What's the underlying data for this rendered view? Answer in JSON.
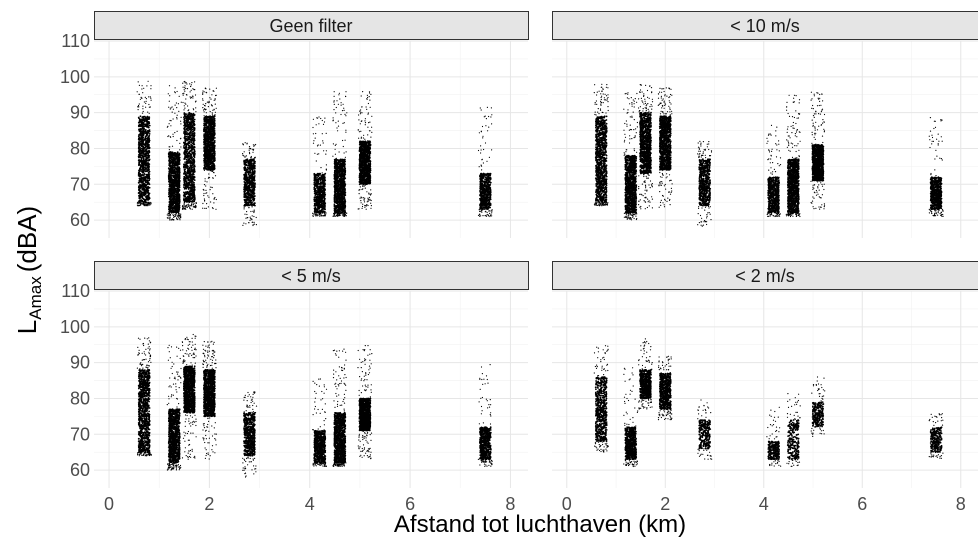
{
  "chart_data": {
    "type": "scatter",
    "xlabel": "Afstand tot luchthaven (km)",
    "ylabel": {
      "main": "L",
      "subscript": "Amax",
      "unit": "(dBA)"
    },
    "xlim": [
      0,
      8
    ],
    "ylim": [
      55,
      110
    ],
    "x_ticks": [
      "0",
      "2",
      "4",
      "6",
      "8"
    ],
    "y_ticks": [
      "60",
      "70",
      "80",
      "90",
      "100",
      "110"
    ],
    "grid": true,
    "point_color": "#000000",
    "panels": [
      {
        "title": "Geen filter",
        "groups": [
          {
            "x": 0.7,
            "core": [
              65,
              89
            ],
            "range": [
              64,
              99
            ],
            "density": "high"
          },
          {
            "x": 1.3,
            "core": [
              62,
              79
            ],
            "range": [
              60,
              98
            ],
            "density": "high"
          },
          {
            "x": 1.6,
            "core": [
              65,
              90
            ],
            "range": [
              63,
              99
            ],
            "density": "high"
          },
          {
            "x": 2.0,
            "core": [
              74,
              89
            ],
            "range": [
              63,
              97
            ],
            "density": "high"
          },
          {
            "x": 2.8,
            "core": [
              64,
              77
            ],
            "range": [
              58,
              82
            ],
            "density": "medium"
          },
          {
            "x": 4.2,
            "core": [
              62,
              73
            ],
            "range": [
              61,
              89
            ],
            "density": "medium"
          },
          {
            "x": 4.6,
            "core": [
              62,
              77
            ],
            "range": [
              61,
              96
            ],
            "density": "high"
          },
          {
            "x": 5.1,
            "core": [
              70,
              82
            ],
            "range": [
              63,
              96
            ],
            "density": "high"
          },
          {
            "x": 7.5,
            "core": [
              63,
              73
            ],
            "range": [
              61,
              92
            ],
            "density": "medium"
          }
        ]
      },
      {
        "title": "< 10 m/s",
        "groups": [
          {
            "x": 0.7,
            "core": [
              65,
              89
            ],
            "range": [
              64,
              98
            ],
            "density": "high"
          },
          {
            "x": 1.3,
            "core": [
              62,
              78
            ],
            "range": [
              60,
              96
            ],
            "density": "high"
          },
          {
            "x": 1.6,
            "core": [
              73,
              90
            ],
            "range": [
              63,
              98
            ],
            "density": "high"
          },
          {
            "x": 2.0,
            "core": [
              74,
              89
            ],
            "range": [
              63,
              97
            ],
            "density": "high"
          },
          {
            "x": 2.8,
            "core": [
              64,
              77
            ],
            "range": [
              58,
              82
            ],
            "density": "medium"
          },
          {
            "x": 4.2,
            "core": [
              62,
              72
            ],
            "range": [
              61,
              88
            ],
            "density": "medium"
          },
          {
            "x": 4.6,
            "core": [
              62,
              77
            ],
            "range": [
              61,
              95
            ],
            "density": "high"
          },
          {
            "x": 5.1,
            "core": [
              71,
              81
            ],
            "range": [
              63,
              96
            ],
            "density": "high"
          },
          {
            "x": 7.5,
            "core": [
              63,
              72
            ],
            "range": [
              61,
              90
            ],
            "density": "medium"
          }
        ]
      },
      {
        "title": "< 5 m/s",
        "groups": [
          {
            "x": 0.7,
            "core": [
              65,
              88
            ],
            "range": [
              64,
              97
            ],
            "density": "high"
          },
          {
            "x": 1.3,
            "core": [
              62,
              77
            ],
            "range": [
              60,
              95
            ],
            "density": "high"
          },
          {
            "x": 1.6,
            "core": [
              76,
              89
            ],
            "range": [
              63,
              98
            ],
            "density": "high"
          },
          {
            "x": 2.0,
            "core": [
              75,
              88
            ],
            "range": [
              63,
              96
            ],
            "density": "high"
          },
          {
            "x": 2.8,
            "core": [
              64,
              76
            ],
            "range": [
              58,
              82
            ],
            "density": "medium"
          },
          {
            "x": 4.2,
            "core": [
              62,
              71
            ],
            "range": [
              61,
              86
            ],
            "density": "medium"
          },
          {
            "x": 4.6,
            "core": [
              62,
              76
            ],
            "range": [
              61,
              94
            ],
            "density": "high"
          },
          {
            "x": 5.1,
            "core": [
              71,
              80
            ],
            "range": [
              63,
              95
            ],
            "density": "high"
          },
          {
            "x": 7.5,
            "core": [
              63,
              72
            ],
            "range": [
              61,
              90
            ],
            "density": "medium"
          }
        ]
      },
      {
        "title": "< 2 m/s",
        "groups": [
          {
            "x": 0.7,
            "core": [
              68,
              86
            ],
            "range": [
              65,
              95
            ],
            "density": "medium"
          },
          {
            "x": 1.3,
            "core": [
              63,
              72
            ],
            "range": [
              61,
              90
            ],
            "density": "medium"
          },
          {
            "x": 1.6,
            "core": [
              80,
              88
            ],
            "range": [
              77,
              97
            ],
            "density": "medium"
          },
          {
            "x": 2.0,
            "core": [
              77,
              87
            ],
            "range": [
              74,
              92
            ],
            "density": "medium"
          },
          {
            "x": 2.8,
            "core": [
              66,
              74
            ],
            "range": [
              63,
              80
            ],
            "density": "low"
          },
          {
            "x": 4.2,
            "core": [
              63,
              68
            ],
            "range": [
              61,
              78
            ],
            "density": "low"
          },
          {
            "x": 4.6,
            "core": [
              63,
              74
            ],
            "range": [
              61,
              82
            ],
            "density": "low"
          },
          {
            "x": 5.1,
            "core": [
              72,
              79
            ],
            "range": [
              69,
              86
            ],
            "density": "low"
          },
          {
            "x": 7.5,
            "core": [
              65,
              72
            ],
            "range": [
              63,
              76
            ],
            "density": "low"
          }
        ]
      }
    ]
  }
}
